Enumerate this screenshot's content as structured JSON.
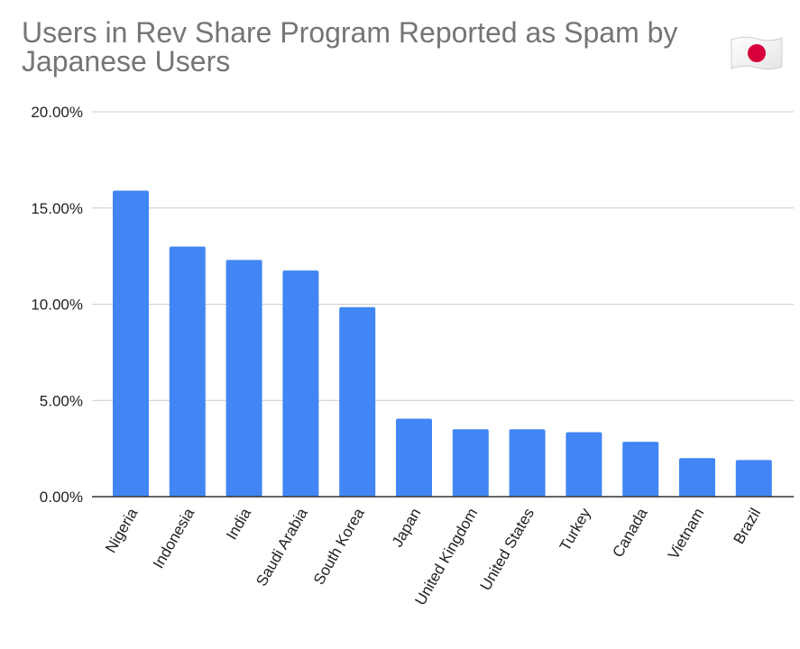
{
  "chart_data": {
    "type": "bar",
    "title": "Users in Rev Share Program Reported as Spam by Japanese Users",
    "xlabel": "",
    "ylabel": "",
    "ylim": [
      0,
      20
    ],
    "y_ticks": [
      "0.00%",
      "5.00%",
      "10.00%",
      "15.00%",
      "20.00%"
    ],
    "y_tick_values": [
      0,
      5,
      10,
      15,
      20
    ],
    "grid": true,
    "categories": [
      "Nigeria",
      "Indonesia",
      "India",
      "Saudi Arabia",
      "South Korea",
      "Japan",
      "United Kingdom",
      "United States",
      "Turkey",
      "Canada",
      "Vietnam",
      "Brazil"
    ],
    "values": [
      15.9,
      13.0,
      12.3,
      11.75,
      9.85,
      4.05,
      3.5,
      3.5,
      3.35,
      2.85,
      2.0,
      1.9
    ],
    "bar_color": "#4285f4"
  },
  "decoration": {
    "flag_icon": "japan-flag-icon",
    "flag_colors": {
      "field": "#ffffff",
      "disc": "#d7003a"
    }
  }
}
